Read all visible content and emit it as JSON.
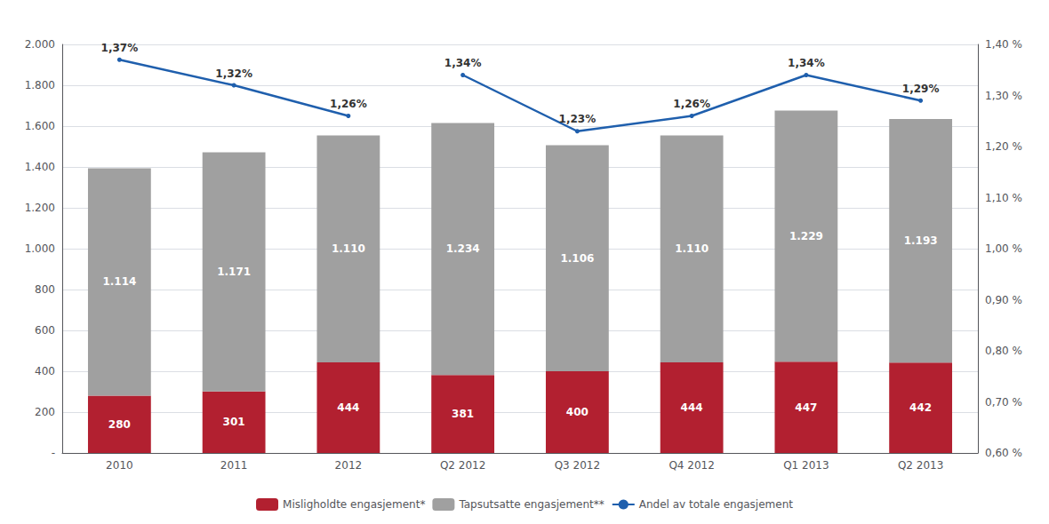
{
  "chart_data": {
    "type": "bar",
    "stacked": true,
    "grid": true,
    "legend": "bottom",
    "data_labels": true,
    "categories": [
      "2010",
      "2011",
      "2012",
      "Q2 2012",
      "Q3 2012",
      "Q4 2012",
      "Q1 2013",
      "Q2 2013"
    ],
    "series": [
      {
        "name": "Misligholdte engasjement*",
        "type": "bar",
        "color": "#B22030",
        "values": [
          280,
          301,
          444,
          381,
          400,
          444,
          447,
          442
        ]
      },
      {
        "name": "Tapsutsatte engasjement**",
        "type": "bar",
        "color": "#A0A0A0",
        "values": [
          1114,
          1171,
          1110,
          1234,
          1106,
          1110,
          1229,
          1193
        ],
        "value_labels": [
          "1.114",
          "1.171",
          "1.110",
          "1.234",
          "1.106",
          "1.110",
          "1.229",
          "1.193"
        ]
      },
      {
        "name": "Andel av totale engasjement",
        "type": "line",
        "axis": "y2",
        "color": "#1F5FAD",
        "values": [
          1.37,
          1.32,
          1.26,
          null,
          null,
          null,
          null,
          null
        ],
        "value_labels": [
          "1,37%",
          "1,32%",
          "1,26%",
          null,
          null,
          null,
          null,
          null
        ]
      },
      {
        "name": "Andel av totale engasjement",
        "type": "line",
        "axis": "y2",
        "color": "#1F5FAD",
        "values": [
          null,
          null,
          null,
          1.34,
          1.23,
          1.26,
          1.34,
          1.29
        ],
        "value_labels": [
          null,
          null,
          null,
          "1,34%",
          "1,23%",
          "1,26%",
          "1,34%",
          "1,29%"
        ]
      }
    ],
    "ylim": [
      0,
      2000
    ],
    "yticks": [
      {
        "value": 0,
        "label": "-"
      },
      200,
      400,
      600,
      800,
      {
        "value": 1000,
        "label": "1.000"
      },
      {
        "value": 1200,
        "label": "1.200"
      },
      {
        "value": 1400,
        "label": "1.400"
      },
      {
        "value": 1600,
        "label": "1.600"
      },
      {
        "value": 1800,
        "label": "1.800"
      },
      {
        "value": 2000,
        "label": "2.000"
      }
    ],
    "y2lim": [
      0.6,
      1.4
    ],
    "y2ticks": [
      {
        "value": 0.6,
        "label": "0,60 %"
      },
      {
        "value": 0.7,
        "label": "0,70 %"
      },
      {
        "value": 0.8,
        "label": "0,80 %"
      },
      {
        "value": 0.9,
        "label": "0,90 %"
      },
      {
        "value": 1.0,
        "label": "1,00 %"
      },
      {
        "value": 1.1,
        "label": "1,10 %"
      },
      {
        "value": 1.2,
        "label": "1,20 %"
      },
      {
        "value": 1.3,
        "label": "1,30 %"
      },
      {
        "value": 1.4,
        "label": "1,40 %"
      }
    ]
  }
}
